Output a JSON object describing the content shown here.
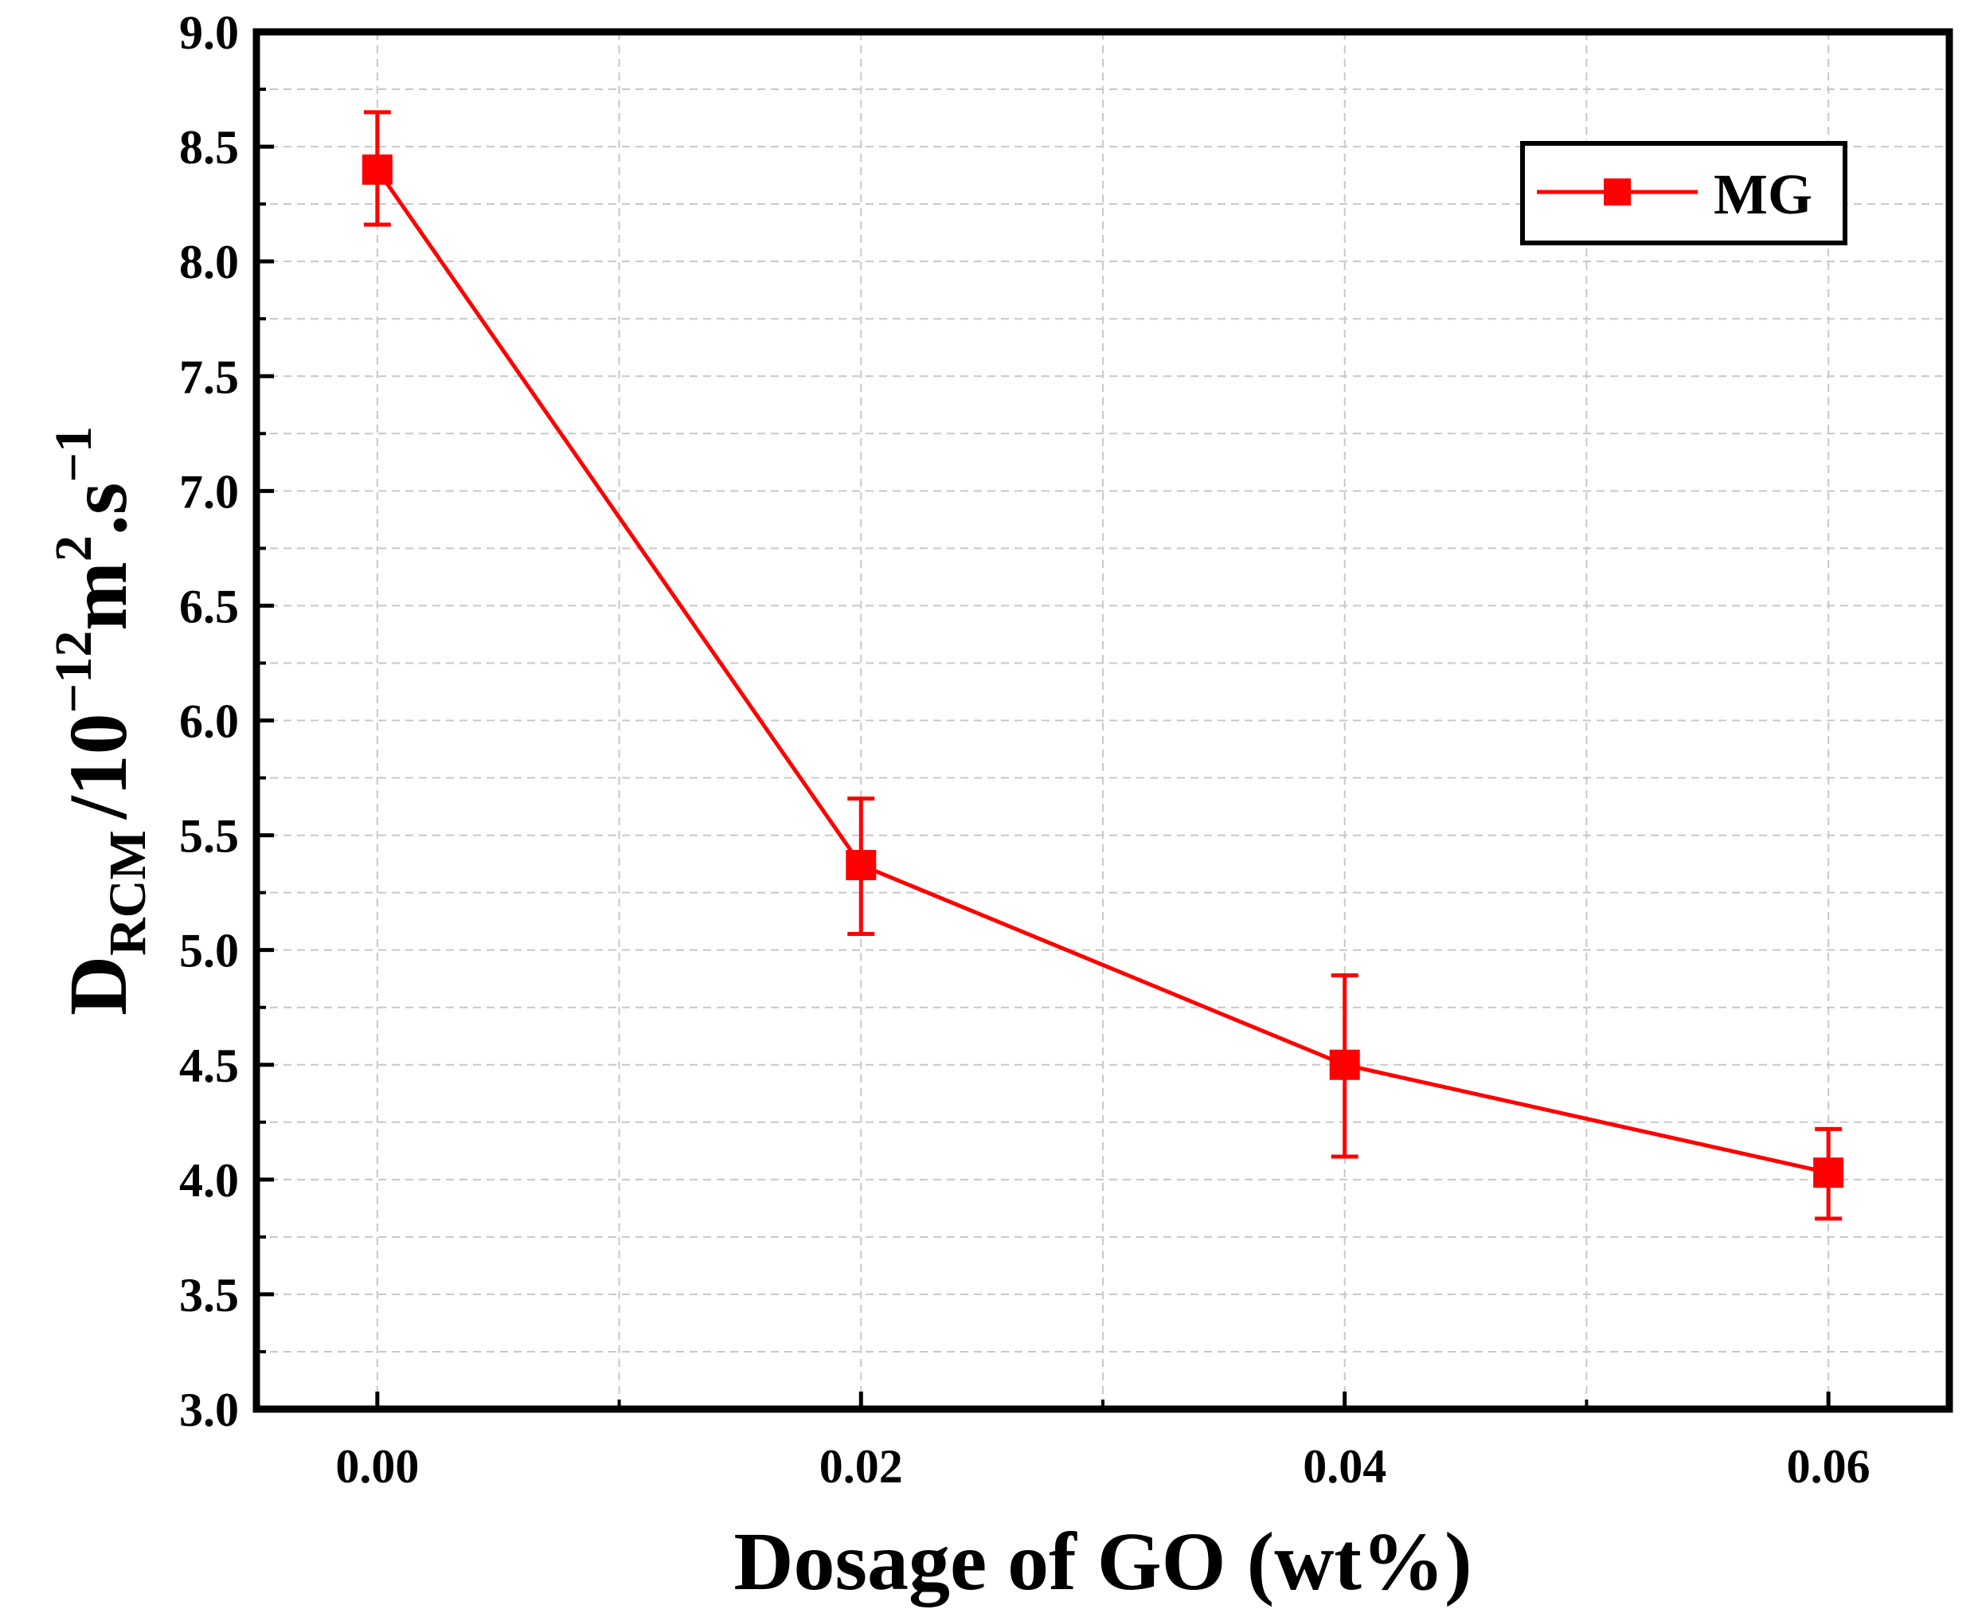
{
  "chart_data": {
    "type": "line",
    "title": "",
    "xlabel": "Dosage of GO (wt%)",
    "ylabel": {
      "base": "D",
      "subscript": "RCM",
      "sep": "/",
      "unit_main": "10",
      "unit_exp": "−12",
      "unit_m": "m",
      "unit_m_exp": "2",
      "unit_s": ".s",
      "unit_s_exp": "−1"
    },
    "x": [
      0.0,
      0.02,
      0.04,
      0.06
    ],
    "xtick_labels": [
      "0.00",
      "0.02",
      "0.04",
      "0.06"
    ],
    "xlim": [
      -0.005,
      0.065
    ],
    "ylim": [
      3.0,
      9.0
    ],
    "ytick_labels": [
      "3.0",
      "3.5",
      "4.0",
      "4.5",
      "5.0",
      "5.5",
      "6.0",
      "6.5",
      "7.0",
      "7.5",
      "8.0",
      "8.5",
      "9.0"
    ],
    "grid": true,
    "legend_position": "top-right",
    "colors": {
      "series": "#ff0000",
      "axis": "#000000",
      "grid": "#c8c8c8"
    },
    "series": [
      {
        "name": "MG",
        "values": [
          8.4,
          5.37,
          4.5,
          4.03
        ],
        "error_low": [
          8.16,
          5.07,
          4.1,
          3.83
        ],
        "error_high": [
          8.65,
          5.66,
          4.89,
          4.22
        ]
      }
    ]
  }
}
